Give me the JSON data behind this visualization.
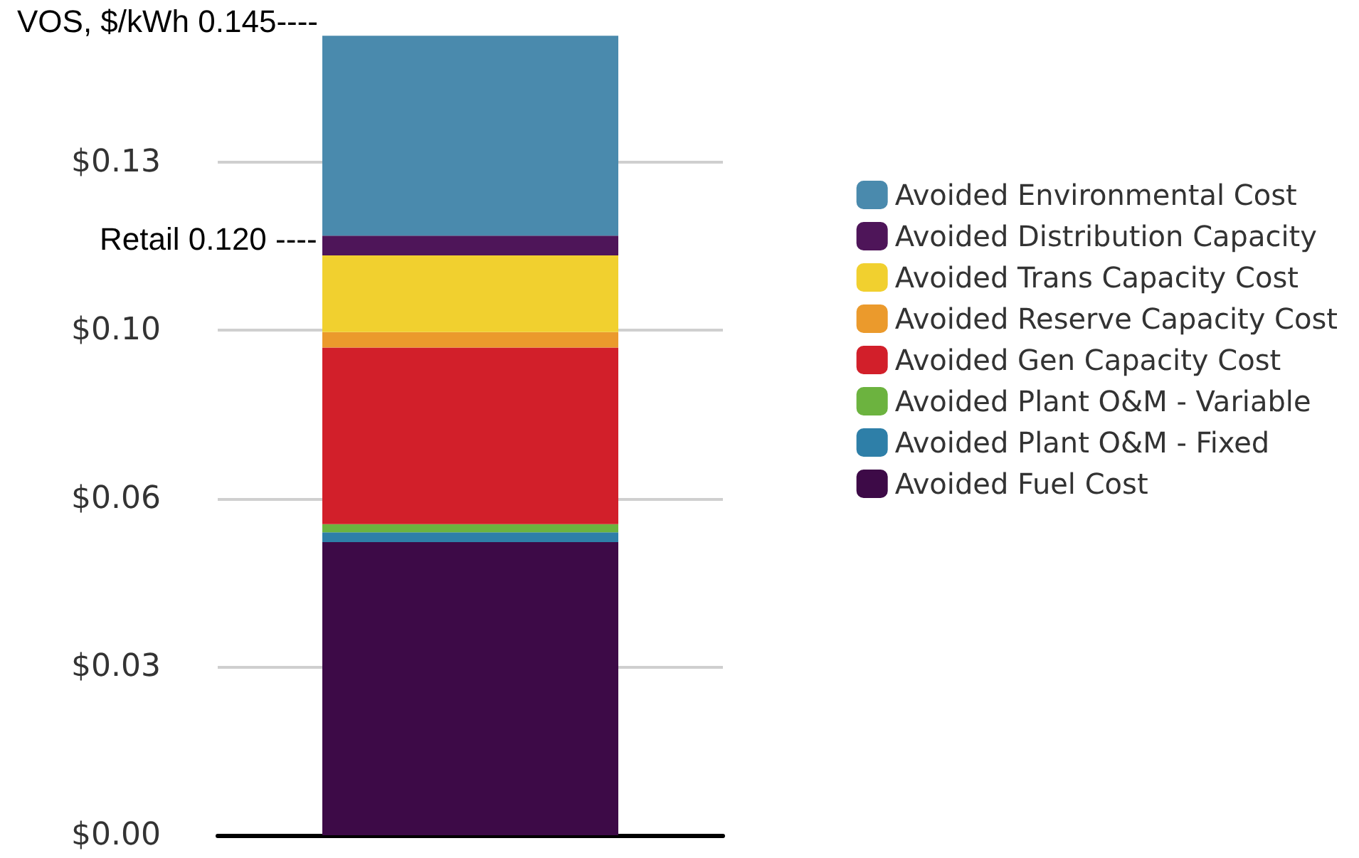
{
  "chart_data": {
    "type": "bar",
    "stacked": true,
    "categories": [
      null
    ],
    "series": [
      {
        "name": "Avoided Fuel Cost",
        "color": "#3d0a47",
        "values": [
          0.0566
        ]
      },
      {
        "name": "Avoided Plant O&M - Fixed",
        "color": "#2e7fa8",
        "values": [
          0.0019
        ]
      },
      {
        "name": "Avoided Plant O&M - Variable",
        "color": "#6cb33f",
        "values": [
          0.0016
        ]
      },
      {
        "name": "Avoided Gen Capacity Cost",
        "color": "#d21f2a",
        "values": [
          0.0341
        ]
      },
      {
        "name": "Avoided Reserve Capacity Cost",
        "color": "#eb9a2c",
        "values": [
          0.003
        ]
      },
      {
        "name": "Avoided Trans Capacity Cost",
        "color": "#f1d02f",
        "values": [
          0.0148
        ]
      },
      {
        "name": "Avoided Distribution Capacity",
        "color": "#4e1559",
        "values": [
          0.0038
        ]
      },
      {
        "name": "Avoided Environmental Cost",
        "color": "#4a8aad",
        "values": [
          0.0386
        ]
      }
    ],
    "ylim": [
      0,
      0.155
    ],
    "yticks": [
      {
        "value": 0,
        "label": "$0.00"
      },
      {
        "value": 0.0325,
        "label": "$0.03"
      },
      {
        "value": 0.065,
        "label": "$0.06"
      },
      {
        "value": 0.0975,
        "label": "$0.10"
      },
      {
        "value": 0.13,
        "label": "$0.13"
      }
    ],
    "grid": "y",
    "legend": "right",
    "annotations": [
      "VOS, $/kWh 0.145----",
      "Retail 0.120 ----"
    ]
  }
}
